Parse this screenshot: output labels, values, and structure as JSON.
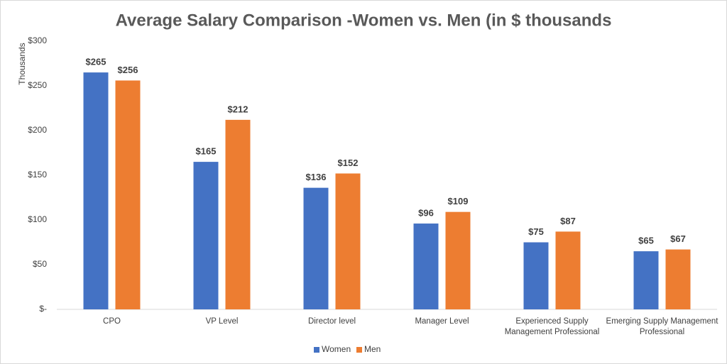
{
  "chart_data": {
    "type": "bar",
    "title": "Average Salary Comparison -Women vs. Men (in $ thousands",
    "y_label": "Thousands",
    "categories": [
      "CPO",
      "VP Level",
      "Director level",
      "Manager Level",
      "Experienced Supply Management Professional",
      "Emerging Supply Management Professional"
    ],
    "series": [
      {
        "name": "Women",
        "color": "#4472c4",
        "values": [
          265,
          165,
          136,
          96,
          75,
          65
        ],
        "value_labels": [
          "$265",
          "$165",
          "$136",
          "$96",
          "$75",
          "$65"
        ]
      },
      {
        "name": "Men",
        "color": "#ed7d31",
        "values": [
          256,
          212,
          152,
          109,
          87,
          67
        ],
        "value_labels": [
          "$256",
          "$212",
          "$152",
          "$109",
          "$87",
          "$67"
        ]
      }
    ],
    "ylim": [
      0,
      300
    ],
    "yticks": [
      {
        "value": 0,
        "label": "$-"
      },
      {
        "value": 50,
        "label": "$50"
      },
      {
        "value": 100,
        "label": "$100"
      },
      {
        "value": 150,
        "label": "$150"
      },
      {
        "value": 200,
        "label": "$200"
      },
      {
        "value": 250,
        "label": "$250"
      },
      {
        "value": 300,
        "label": "$300"
      }
    ],
    "grid": false,
    "legend": "bottom"
  }
}
